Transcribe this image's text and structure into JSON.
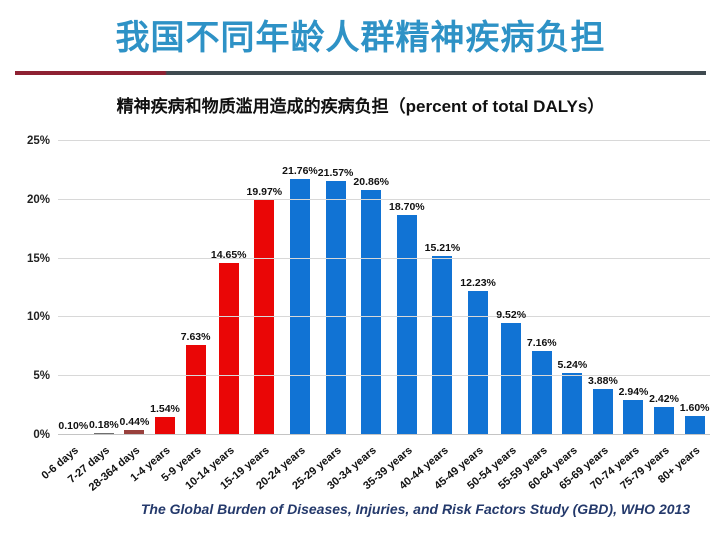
{
  "page": {
    "title": "我国不同年龄人群精神疾病负担",
    "subtitle": "精神疾病和物质滥用造成的疾病负担（percent of total DALYs）",
    "footer": "The Global Burden of Diseases, Injuries, and Risk Factors Study (GBD), WHO 2013"
  },
  "colors": {
    "title_blue": "#2e92c6",
    "divider_red": "#8e2132",
    "divider_gray": "#3f4a50",
    "red_bar": "#ea0606",
    "blue_bar": "#1173d4",
    "footer_navy": "#24396b",
    "gridline": "#d8d8d8"
  },
  "chart_data": {
    "type": "bar",
    "title": "精神疾病和物质滥用造成的疾病负担（percent of total DALYs）",
    "categories": [
      "0-6 days",
      "7-27 days",
      "28-364 days",
      "1-4 years",
      "5-9 years",
      "10-14 years",
      "15-19 years",
      "20-24 years",
      "25-29 years",
      "30-34 years",
      "35-39 years",
      "40-44 years",
      "45-49 years",
      "50-54 years",
      "55-59 years",
      "60-64 years",
      "65-69 years",
      "70-74 years",
      "75-79 years",
      "80+ years"
    ],
    "values": [
      0.1,
      0.18,
      0.44,
      1.54,
      7.63,
      14.65,
      19.97,
      21.76,
      21.57,
      20.86,
      18.7,
      15.21,
      12.23,
      9.52,
      7.16,
      5.24,
      3.88,
      2.94,
      2.42,
      1.6
    ],
    "labels": [
      "0.10%",
      "0.18%",
      "0.44%",
      "1.54%",
      "7.63%",
      "14.65%",
      "19.97%",
      "21.76%",
      "21.57%",
      "20.86%",
      "18.70%",
      "15.21%",
      "12.23%",
      "9.52%",
      "7.16%",
      "5.24%",
      "3.88%",
      "2.94%",
      "2.42%",
      "1.60%"
    ],
    "bar_colors": [
      "#8c8c8c",
      "#6f6f6f",
      "#98403c",
      "#ea0606",
      "#ea0606",
      "#ea0606",
      "#ea0606",
      "#1173d4",
      "#1173d4",
      "#1173d4",
      "#1173d4",
      "#1173d4",
      "#1173d4",
      "#1173d4",
      "#1173d4",
      "#1173d4",
      "#1173d4",
      "#1173d4",
      "#1173d4",
      "#1173d4"
    ],
    "xlabel": "",
    "ylabel": "",
    "ylim": [
      0,
      25
    ],
    "yticks": [
      "0%",
      "5%",
      "10%",
      "15%",
      "20%",
      "25%"
    ],
    "grid": true,
    "legend_position": "none"
  }
}
